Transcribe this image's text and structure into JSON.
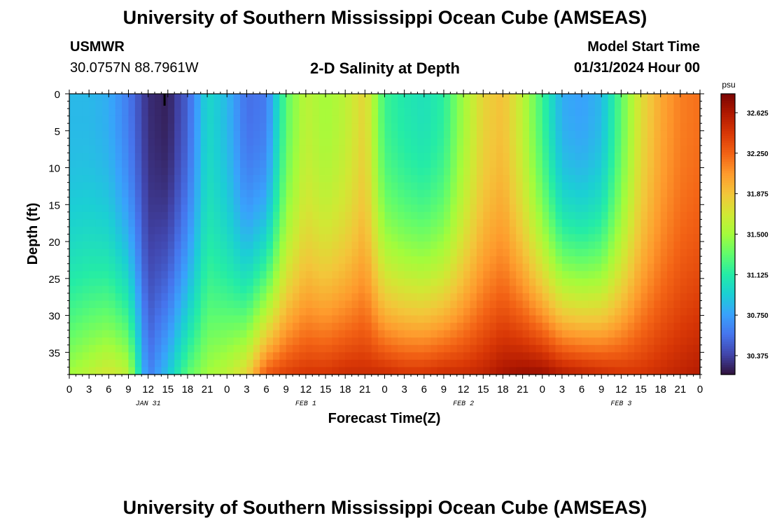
{
  "title": "University of Southern Mississippi Ocean Cube (AMSEAS)",
  "station": {
    "name": "USMWR",
    "coords": "30.0757N  88.7961W"
  },
  "plot_title": "2-D Salinity at Depth",
  "model_start": {
    "label": "Model Start Time",
    "value": "01/31/2024 Hour 00"
  },
  "footer_title": "University of Southern Mississippi Ocean Cube (AMSEAS)",
  "chart_data": {
    "type": "heatmap",
    "xlabel": "Forecast Time(Z)",
    "ylabel": "Depth (ft)",
    "x_unit": "hours since 01/31/2024 00Z",
    "xlim": [
      0,
      96
    ],
    "ylim": [
      0,
      38
    ],
    "y_inverted": true,
    "x_tick_labels": [
      "0",
      "3",
      "6",
      "9",
      "12",
      "15",
      "18",
      "21",
      "0",
      "3",
      "6",
      "9",
      "12",
      "15",
      "18",
      "21",
      "0",
      "3",
      "6",
      "9",
      "12",
      "15",
      "18",
      "21",
      "0",
      "3",
      "6",
      "9",
      "12",
      "15",
      "18",
      "21",
      "0"
    ],
    "date_labels": [
      {
        "label": "JAN 31",
        "hour": 12
      },
      {
        "label": "FEB 1",
        "hour": 36
      },
      {
        "label": "FEB 2",
        "hour": 60
      },
      {
        "label": "FEB 3",
        "hour": 84
      }
    ],
    "y_ticks": [
      0,
      5,
      10,
      15,
      20,
      25,
      30,
      35
    ],
    "current_time_marker_hour": 14.5,
    "colorbar": {
      "unit": "psu",
      "range": [
        30.2,
        32.8
      ],
      "ticks": [
        "32.625",
        "32.250",
        "31.875",
        "31.500",
        "31.125",
        "30.750",
        "30.375"
      ],
      "colors": [
        "#30123b",
        "#4145ab",
        "#4675ed",
        "#39a2fc",
        "#1bcfd4",
        "#24eca6",
        "#61fc6c",
        "#a4fc3b",
        "#d1e834",
        "#f3c63a",
        "#fe9b2d",
        "#f36315",
        "#d93806",
        "#b11901",
        "#7a0402"
      ]
    },
    "salinity_profiles": [
      {
        "hour": 0,
        "surface": 30.85,
        "bottom": 31.5
      },
      {
        "hour": 3,
        "surface": 30.85,
        "bottom": 31.6
      },
      {
        "hour": 6,
        "surface": 30.8,
        "bottom": 31.7
      },
      {
        "hour": 9,
        "surface": 30.6,
        "bottom": 31.6
      },
      {
        "hour": 12,
        "surface": 30.3,
        "bottom": 30.6
      },
      {
        "hour": 15,
        "surface": 30.25,
        "bottom": 30.9
      },
      {
        "hour": 18,
        "surface": 30.5,
        "bottom": 31.3
      },
      {
        "hour": 21,
        "surface": 31.0,
        "bottom": 31.5
      },
      {
        "hour": 24,
        "surface": 30.85,
        "bottom": 31.6
      },
      {
        "hour": 27,
        "surface": 30.55,
        "bottom": 31.8
      },
      {
        "hour": 30,
        "surface": 30.6,
        "bottom": 32.3
      },
      {
        "hour": 33,
        "surface": 31.3,
        "bottom": 32.4
      },
      {
        "hour": 36,
        "surface": 31.6,
        "bottom": 32.45
      },
      {
        "hour": 39,
        "surface": 31.5,
        "bottom": 32.45
      },
      {
        "hour": 42,
        "surface": 31.6,
        "bottom": 32.5
      },
      {
        "hour": 45,
        "surface": 31.8,
        "bottom": 32.5
      },
      {
        "hour": 48,
        "surface": 31.2,
        "bottom": 32.5
      },
      {
        "hour": 51,
        "surface": 31.1,
        "bottom": 32.45
      },
      {
        "hour": 54,
        "surface": 31.05,
        "bottom": 32.45
      },
      {
        "hour": 57,
        "surface": 31.15,
        "bottom": 32.5
      },
      {
        "hour": 60,
        "surface": 31.5,
        "bottom": 32.5
      },
      {
        "hour": 63,
        "surface": 31.8,
        "bottom": 32.55
      },
      {
        "hour": 66,
        "surface": 31.9,
        "bottom": 32.65
      },
      {
        "hour": 69,
        "surface": 31.6,
        "bottom": 32.7
      },
      {
        "hour": 72,
        "surface": 31.2,
        "bottom": 32.7
      },
      {
        "hour": 75,
        "surface": 30.8,
        "bottom": 32.6
      },
      {
        "hour": 78,
        "surface": 30.75,
        "bottom": 32.55
      },
      {
        "hour": 81,
        "surface": 30.85,
        "bottom": 32.5
      },
      {
        "hour": 84,
        "surface": 31.3,
        "bottom": 32.45
      },
      {
        "hour": 87,
        "surface": 31.75,
        "bottom": 32.45
      },
      {
        "hour": 90,
        "surface": 32.0,
        "bottom": 32.5
      },
      {
        "hour": 93,
        "surface": 32.15,
        "bottom": 32.55
      },
      {
        "hour": 96,
        "surface": 32.2,
        "bottom": 32.6
      }
    ]
  }
}
